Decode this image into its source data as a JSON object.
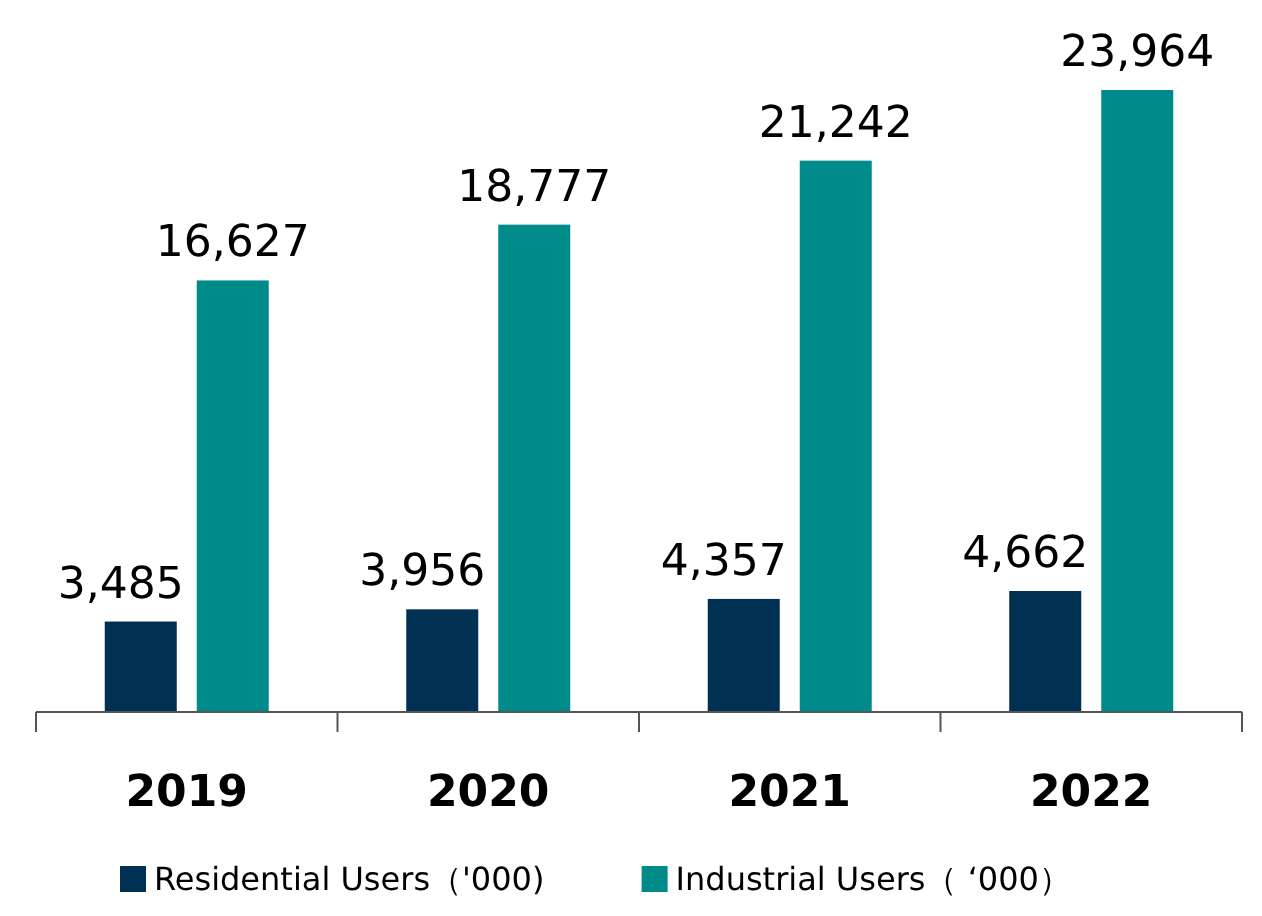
{
  "chart_data": {
    "type": "bar",
    "categories": [
      "2019",
      "2020",
      "2021",
      "2022"
    ],
    "series": [
      {
        "name": "Residential Users（'000)",
        "color": "#003153",
        "values": [
          3485,
          3956,
          4357,
          4662
        ],
        "value_labels": [
          "3,485",
          "3,956",
          "4,357",
          "4,662"
        ]
      },
      {
        "name": "Industrial Users（ ‘000）",
        "color": "#008b8b",
        "values": [
          16627,
          18777,
          21242,
          23964
        ],
        "value_labels": [
          "16,627",
          "18,777",
          "21,242",
          "23,964"
        ]
      }
    ],
    "legend": "bottom"
  }
}
